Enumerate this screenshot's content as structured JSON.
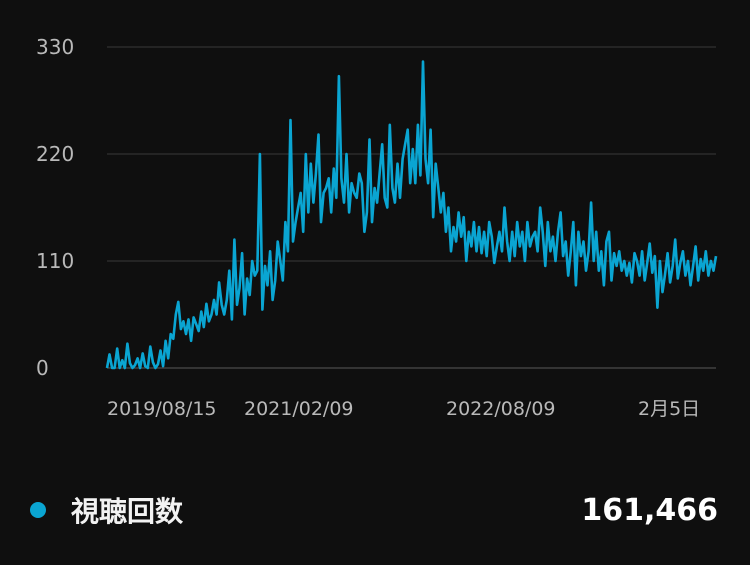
{
  "chart_data": {
    "type": "line",
    "x_tick_labels": [
      "2019/08/15",
      "2021/02/09",
      "2022/08/09",
      "2月5日"
    ],
    "y_ticks": [
      0,
      110,
      220,
      330
    ],
    "ylim": [
      0,
      330
    ],
    "grid": true,
    "color": "#0aa5d2",
    "series": [
      {
        "name": "視聴回数",
        "values": [
          0,
          14,
          0,
          0,
          20,
          0,
          8,
          0,
          25,
          5,
          0,
          3,
          10,
          0,
          15,
          2,
          0,
          22,
          6,
          0,
          4,
          18,
          2,
          28,
          10,
          35,
          30,
          55,
          68,
          40,
          48,
          35,
          50,
          28,
          52,
          45,
          38,
          58,
          42,
          66,
          48,
          55,
          70,
          55,
          88,
          65,
          55,
          70,
          100,
          50,
          132,
          65,
          82,
          118,
          55,
          92,
          75,
          110,
          95,
          100,
          220,
          60,
          105,
          85,
          120,
          70,
          90,
          130,
          110,
          90,
          150,
          120,
          255,
          130,
          150,
          165,
          180,
          140,
          220,
          160,
          210,
          170,
          200,
          240,
          150,
          180,
          185,
          195,
          160,
          205,
          175,
          300,
          195,
          170,
          220,
          160,
          190,
          180,
          175,
          200,
          190,
          140,
          160,
          235,
          150,
          185,
          170,
          200,
          230,
          175,
          165,
          250,
          185,
          170,
          210,
          175,
          215,
          230,
          245,
          190,
          225,
          190,
          250,
          198,
          315,
          215,
          190,
          245,
          155,
          210,
          185,
          160,
          180,
          140,
          165,
          120,
          145,
          130,
          160,
          135,
          155,
          110,
          140,
          125,
          150,
          120,
          145,
          118,
          140,
          115,
          150,
          135,
          108,
          125,
          140,
          120,
          165,
          130,
          110,
          140,
          115,
          150,
          125,
          140,
          110,
          150,
          125,
          135,
          140,
          120,
          165,
          140,
          105,
          150,
          120,
          135,
          110,
          140,
          160,
          115,
          130,
          95,
          120,
          150,
          85,
          140,
          115,
          130,
          100,
          120,
          170,
          110,
          140,
          100,
          120,
          85,
          130,
          140,
          90,
          118,
          105,
          120,
          100,
          110,
          95,
          108,
          88,
          118,
          110,
          95,
          120,
          90,
          108,
          128,
          98,
          115,
          62,
          110,
          78,
          96,
          118,
          88,
          105,
          132,
          92,
          108,
          120,
          95,
          110,
          85,
          105,
          125,
          90,
          112,
          100,
          120,
          95,
          110,
          100,
          115
        ]
      }
    ],
    "legend": {
      "label": "視聴回数",
      "value": "161,466"
    }
  }
}
